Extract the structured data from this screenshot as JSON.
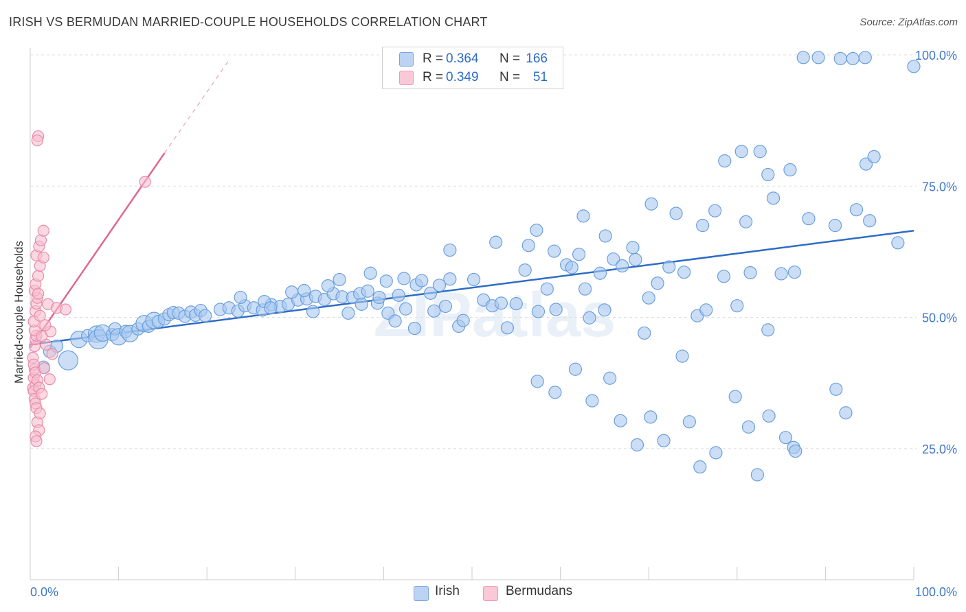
{
  "header": {
    "title": "IRISH VS BERMUDAN MARRIED-COUPLE HOUSEHOLDS CORRELATION CHART",
    "source": "Source: ZipAtlas.com"
  },
  "watermark": "ZIPatlas",
  "legend": {
    "r_label": "R =",
    "n_label": "N =",
    "entries": [
      {
        "r": "0.364",
        "n": "166"
      },
      {
        "r": "0.349",
        "n": "51"
      }
    ]
  },
  "bottom_legend": [
    "Irish",
    "Bermudans"
  ],
  "colors": {
    "irish_fill": "#a9c8f0",
    "irish_stroke": "#6a9fdc",
    "irish_line": "#2d6cc6",
    "berm_fill": "#f6bfd0",
    "berm_stroke": "#ea8aaa",
    "berm_line": "#e06690",
    "tick_label": "#3f77c8",
    "grid": "#dddddd",
    "axis": "#cccccc"
  },
  "chart_data": {
    "type": "scatter",
    "title": "IRISH VS BERMUDAN MARRIED-COUPLE HOUSEHOLDS CORRELATION CHART",
    "xlabel": "",
    "ylabel": "Married-couple Households",
    "xlim": [
      0,
      100
    ],
    "ylim": [
      0,
      100
    ],
    "x_tick_labels": [
      "0.0%",
      "100.0%"
    ],
    "y_ticks": [
      25,
      50,
      75,
      100
    ],
    "y_tick_labels": [
      "25.0%",
      "50.0%",
      "75.0%",
      "100.0%"
    ],
    "grid": true,
    "series": [
      {
        "name": "Irish",
        "R": 0.364,
        "N": 166,
        "trend": {
          "x0": 0,
          "y0": 44.8,
          "x1": 100,
          "y1": 66.5
        },
        "points": [
          [
            1.5,
            40.5,
            3
          ],
          [
            2.2,
            43.5,
            3
          ],
          [
            3.0,
            44.5,
            3
          ],
          [
            4.3,
            41.8,
            5
          ],
          [
            5.5,
            45.8,
            4
          ],
          [
            6.5,
            46.5,
            3
          ],
          [
            7.5,
            46.8,
            4
          ],
          [
            7.7,
            45.8,
            5
          ],
          [
            8.2,
            47.0,
            4
          ],
          [
            9.3,
            46.7,
            3
          ],
          [
            9.6,
            47.8,
            3
          ],
          [
            10.0,
            46.3,
            4
          ],
          [
            10.8,
            47.3,
            3
          ],
          [
            11.3,
            46.9,
            4
          ],
          [
            12.2,
            47.8,
            3
          ],
          [
            12.9,
            48.8,
            4
          ],
          [
            13.4,
            48.3,
            3
          ],
          [
            14.0,
            49.4,
            4
          ],
          [
            14.5,
            49.2,
            3
          ],
          [
            15.2,
            49.7,
            3
          ],
          [
            15.7,
            50.5,
            3
          ],
          [
            16.2,
            50.9,
            3
          ],
          [
            16.8,
            50.8,
            3
          ],
          [
            17.5,
            50.2,
            3
          ],
          [
            18.2,
            51.0,
            3
          ],
          [
            18.7,
            50.4,
            3
          ],
          [
            19.3,
            51.3,
            3
          ],
          [
            19.8,
            50.3,
            3
          ],
          [
            21.5,
            51.5,
            3
          ],
          [
            22.5,
            51.8,
            3
          ],
          [
            23.5,
            51.2,
            3
          ],
          [
            24.3,
            52.2,
            3
          ],
          [
            25.3,
            51.8,
            3
          ],
          [
            26.3,
            51.4,
            3
          ],
          [
            27.3,
            52.4,
            3
          ],
          [
            28.3,
            52.1,
            3
          ],
          [
            29.2,
            52.5,
            3
          ],
          [
            30.3,
            53.3,
            3
          ],
          [
            31.3,
            53.5,
            3
          ],
          [
            32.3,
            54.0,
            3
          ],
          [
            33.3,
            53.4,
            3
          ],
          [
            34.3,
            54.5,
            3
          ],
          [
            35.3,
            53.9,
            3
          ],
          [
            23.8,
            53.8,
            3
          ],
          [
            26.5,
            53.0,
            3
          ],
          [
            29.6,
            54.8,
            3
          ],
          [
            31.0,
            55.1,
            3
          ],
          [
            33.7,
            56.0,
            3
          ],
          [
            36.5,
            53.8,
            3
          ],
          [
            37.3,
            54.5,
            3
          ],
          [
            38.2,
            55.0,
            3
          ],
          [
            39.3,
            52.7,
            3
          ],
          [
            40.3,
            56.9,
            3
          ],
          [
            41.7,
            54.2,
            3
          ],
          [
            42.3,
            57.4,
            3
          ],
          [
            43.7,
            56.2,
            3
          ],
          [
            45.3,
            54.6,
            3
          ],
          [
            46.3,
            56.1,
            3
          ],
          [
            47.5,
            57.3,
            3
          ],
          [
            27.2,
            51.8,
            3
          ],
          [
            32.0,
            51.1,
            3
          ],
          [
            35.0,
            57.2,
            3
          ],
          [
            36.0,
            50.8,
            3
          ],
          [
            37.5,
            52.5,
            3
          ],
          [
            38.5,
            58.4,
            3
          ],
          [
            39.5,
            53.8,
            3
          ],
          [
            40.5,
            50.8,
            3
          ],
          [
            41.3,
            49.3,
            3
          ],
          [
            42.5,
            51.6,
            3
          ],
          [
            43.5,
            47.9,
            3
          ],
          [
            44.3,
            57.0,
            3
          ],
          [
            45.7,
            51.2,
            3
          ],
          [
            47.0,
            52.1,
            3
          ],
          [
            48.5,
            48.3,
            3
          ],
          [
            49.0,
            49.4,
            3
          ],
          [
            50.2,
            57.2,
            3
          ],
          [
            51.3,
            53.3,
            3
          ],
          [
            52.3,
            52.2,
            3
          ],
          [
            53.3,
            52.7,
            3
          ],
          [
            54.0,
            48.0,
            3
          ],
          [
            55.0,
            52.6,
            3
          ],
          [
            56.0,
            59.0,
            3
          ],
          [
            57.5,
            51.1,
            3
          ],
          [
            58.5,
            55.4,
            3
          ],
          [
            59.5,
            51.5,
            3
          ],
          [
            60.7,
            60.0,
            3
          ],
          [
            61.3,
            59.5,
            3
          ],
          [
            62.1,
            62.0,
            3
          ],
          [
            62.8,
            55.4,
            3
          ],
          [
            63.3,
            49.9,
            3
          ],
          [
            64.5,
            58.4,
            3
          ],
          [
            65.0,
            51.4,
            3
          ],
          [
            66.0,
            61.1,
            3
          ],
          [
            67.0,
            59.8,
            3
          ],
          [
            68.5,
            61.0,
            3
          ],
          [
            69.5,
            47.0,
            3
          ],
          [
            70.0,
            53.7,
            3
          ],
          [
            71.0,
            56.5,
            3
          ],
          [
            72.3,
            59.6,
            3
          ],
          [
            74.0,
            58.6,
            3
          ],
          [
            75.5,
            50.3,
            3
          ],
          [
            76.5,
            51.4,
            3
          ],
          [
            78.5,
            57.8,
            3
          ],
          [
            80.0,
            52.2,
            3
          ],
          [
            81.5,
            58.5,
            3
          ],
          [
            83.5,
            47.6,
            3
          ],
          [
            85.0,
            58.3,
            3
          ],
          [
            86.5,
            58.6,
            3
          ],
          [
            47.5,
            62.8,
            3
          ],
          [
            52.7,
            64.3,
            3
          ],
          [
            56.4,
            63.7,
            3
          ],
          [
            57.3,
            66.6,
            3
          ],
          [
            59.3,
            62.6,
            3
          ],
          [
            62.6,
            69.3,
            3
          ],
          [
            65.1,
            65.5,
            3
          ],
          [
            68.2,
            63.3,
            3
          ],
          [
            70.3,
            71.6,
            3
          ],
          [
            73.1,
            69.8,
            3
          ],
          [
            76.1,
            67.5,
            3
          ],
          [
            77.5,
            70.3,
            3
          ],
          [
            81.0,
            68.2,
            3
          ],
          [
            84.1,
            72.7,
            3
          ],
          [
            88.1,
            68.8,
            3
          ],
          [
            91.1,
            67.5,
            3
          ],
          [
            93.5,
            70.5,
            3
          ],
          [
            95.0,
            68.4,
            3
          ],
          [
            98.2,
            64.2,
            3
          ],
          [
            100.0,
            97.8,
            3
          ],
          [
            87.5,
            99.5,
            3
          ],
          [
            89.2,
            99.5,
            3
          ],
          [
            91.7,
            99.3,
            3
          ],
          [
            93.1,
            99.3,
            3
          ],
          [
            94.5,
            99.5,
            3
          ],
          [
            94.6,
            79.2,
            3
          ],
          [
            95.5,
            80.6,
            3
          ],
          [
            80.5,
            81.6,
            3
          ],
          [
            82.6,
            81.6,
            3
          ],
          [
            86.0,
            78.1,
            3
          ],
          [
            83.5,
            77.2,
            3
          ],
          [
            78.6,
            79.8,
            3
          ],
          [
            57.4,
            37.8,
            3
          ],
          [
            59.4,
            35.7,
            3
          ],
          [
            61.7,
            40.1,
            3
          ],
          [
            63.6,
            34.1,
            3
          ],
          [
            65.6,
            38.4,
            3
          ],
          [
            66.8,
            30.3,
            3
          ],
          [
            68.7,
            25.7,
            3
          ],
          [
            70.2,
            31.0,
            3
          ],
          [
            71.7,
            26.5,
            3
          ],
          [
            73.8,
            42.6,
            3
          ],
          [
            74.6,
            30.1,
            3
          ],
          [
            75.8,
            21.5,
            3
          ],
          [
            77.6,
            24.2,
            3
          ],
          [
            79.8,
            34.9,
            3
          ],
          [
            81.3,
            29.1,
            3
          ],
          [
            82.3,
            20.0,
            3
          ],
          [
            83.6,
            31.2,
            3
          ],
          [
            85.5,
            27.1,
            3
          ],
          [
            86.4,
            25.2,
            3
          ],
          [
            86.6,
            24.5,
            3
          ],
          [
            91.2,
            36.3,
            3
          ],
          [
            92.3,
            31.8,
            3
          ]
        ]
      },
      {
        "name": "Bermudans",
        "R": 0.349,
        "N": 51,
        "trend": {
          "x0": 0,
          "y0": 44.2,
          "x1": 15.2,
          "y1": 81.3,
          "x_dash_end": 22.5,
          "y_dash_end": 99.0
        },
        "points": [
          [
            0.3,
            36.5
          ],
          [
            0.4,
            38.5
          ],
          [
            0.5,
            40.1
          ],
          [
            0.6,
            37.1
          ],
          [
            0.4,
            35.9
          ],
          [
            0.5,
            34.4
          ],
          [
            0.6,
            33.6
          ],
          [
            0.7,
            32.7
          ],
          [
            0.5,
            44.5
          ],
          [
            0.6,
            45.8
          ],
          [
            0.7,
            46.5
          ],
          [
            0.5,
            47.5
          ],
          [
            0.4,
            49.2
          ],
          [
            0.6,
            51.2
          ],
          [
            0.7,
            52.6
          ],
          [
            0.8,
            53.7
          ],
          [
            0.5,
            55.1
          ],
          [
            0.6,
            56.3
          ],
          [
            0.9,
            57.9
          ],
          [
            1.1,
            59.8
          ],
          [
            0.7,
            61.8
          ],
          [
            1.0,
            63.5
          ],
          [
            1.2,
            64.7
          ],
          [
            1.5,
            66.5
          ],
          [
            0.3,
            42.3
          ],
          [
            0.4,
            41.0
          ],
          [
            0.6,
            39.5
          ],
          [
            0.8,
            38.0
          ],
          [
            1.0,
            36.6
          ],
          [
            1.3,
            35.4
          ],
          [
            0.8,
            30.0
          ],
          [
            1.0,
            28.5
          ],
          [
            0.6,
            27.3
          ],
          [
            0.7,
            26.4
          ],
          [
            1.1,
            31.7
          ],
          [
            0.9,
            84.5
          ],
          [
            0.8,
            83.7
          ],
          [
            13.0,
            75.8
          ],
          [
            1.5,
            61.4
          ],
          [
            2.0,
            52.5
          ],
          [
            3.0,
            51.8
          ],
          [
            4.0,
            51.5
          ],
          [
            2.3,
            47.3
          ],
          [
            1.8,
            44.8
          ],
          [
            2.5,
            43.0
          ],
          [
            1.6,
            40.3
          ],
          [
            2.2,
            38.2
          ],
          [
            1.3,
            46.4
          ],
          [
            1.7,
            48.5
          ],
          [
            1.1,
            50.3
          ],
          [
            0.9,
            54.5
          ]
        ]
      }
    ]
  }
}
